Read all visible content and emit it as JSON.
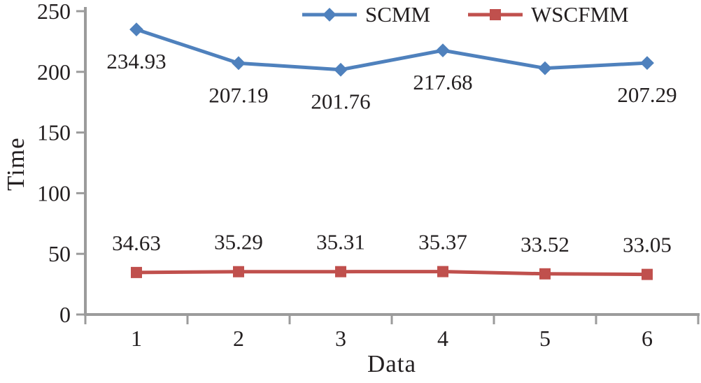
{
  "figure": {
    "background": "#ffffff"
  },
  "chart_data": {
    "type": "line",
    "title": "",
    "xlabel": "Data",
    "ylabel": "Time",
    "categories": [
      "1",
      "2",
      "3",
      "4",
      "5",
      "6"
    ],
    "ylim": [
      0,
      250
    ],
    "yticks": [
      "0",
      "50",
      "100",
      "150",
      "200",
      "250"
    ],
    "grid": false,
    "axis_color": "#9b9b9b",
    "text_color": "#231f20",
    "legend": {
      "position": "top-center",
      "entries": [
        "SCMM",
        "WSCFMM"
      ]
    },
    "series": [
      {
        "name": "SCMM",
        "color": "#4f81bd",
        "marker": "diamond",
        "label_placement": "below",
        "values": [
          234.93,
          207.19,
          201.76,
          217.68,
          203,
          207.29
        ],
        "labels": [
          "234.93",
          "207.19",
          "201.76",
          "217.68",
          "",
          "207.29"
        ]
      },
      {
        "name": "WSCFMM",
        "color": "#c0504d",
        "marker": "square",
        "label_placement": "above",
        "values": [
          34.63,
          35.29,
          35.31,
          35.37,
          33.52,
          33.05
        ],
        "labels": [
          "34.63",
          "35.29",
          "35.31",
          "35.37",
          "33.52",
          "33.05"
        ]
      }
    ]
  }
}
